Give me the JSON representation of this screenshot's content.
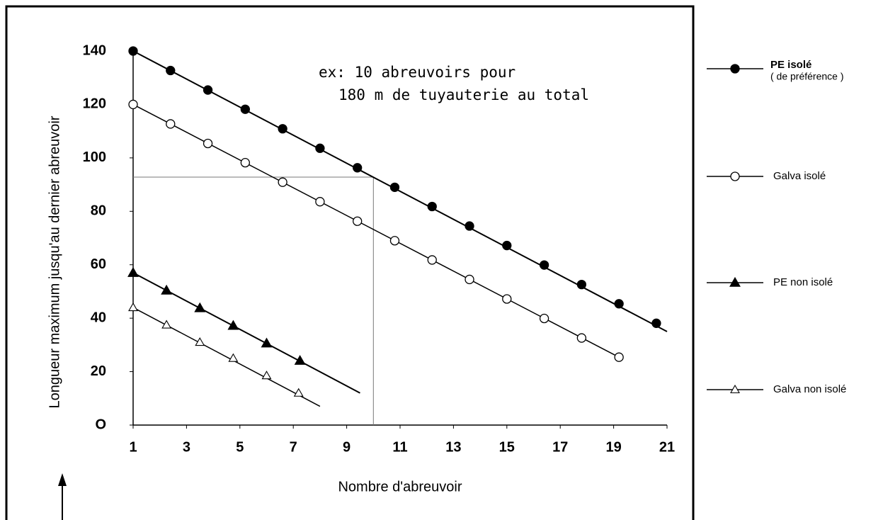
{
  "chart_data": {
    "type": "line",
    "y_label": "Longueur maximum  jusqu'au dernier abreuvoir",
    "x_label": "Nombre d'abreuvoir",
    "annotation": [
      "ex: 10 abreuvoirs pour",
      "180 m de tuyauterie au total"
    ],
    "xlim": [
      1,
      21
    ],
    "ylim": [
      0,
      140
    ],
    "xticks": [
      1,
      3,
      5,
      7,
      9,
      11,
      13,
      15,
      17,
      19,
      21
    ],
    "yticks": [
      {
        "value": 0,
        "label": "O"
      },
      20,
      40,
      60,
      80,
      100,
      120,
      140
    ],
    "reference": {
      "x": 10,
      "y": 92.8
    },
    "series": [
      {
        "name": "PE isolé",
        "note": "( de préférence )",
        "color": "#000000",
        "marker": "circle",
        "filled": true,
        "x": [
          1,
          2.4,
          3.8,
          5.2,
          6.6,
          8,
          9.4,
          10.8,
          12.2,
          13.6,
          15,
          16.4,
          17.8,
          19.2,
          20.6
        ],
        "values": [
          140,
          132.7,
          125.4,
          118.2,
          110.9,
          103.6,
          96.3,
          89,
          81.8,
          74.5,
          67.2,
          59.9,
          52.6,
          45.4,
          38.1
        ],
        "line": {
          "x": [
            1,
            21
          ],
          "y": [
            140,
            35
          ]
        }
      },
      {
        "name": "Galva isolé",
        "color": "#000000",
        "marker": "circle",
        "filled": false,
        "x": [
          1,
          2.4,
          3.8,
          5.2,
          6.6,
          8,
          9.4,
          10.8,
          12.2,
          13.6,
          15,
          16.4,
          17.8,
          19.2
        ],
        "values": [
          120,
          112.7,
          105.4,
          98.2,
          90.9,
          83.6,
          76.3,
          69,
          61.8,
          54.5,
          47.2,
          39.9,
          32.6,
          25.4
        ],
        "line": {
          "x": [
            1,
            19.2
          ],
          "y": [
            120,
            25.4
          ]
        }
      },
      {
        "name": "PE non isolé",
        "color": "#000000",
        "marker": "triangle",
        "filled": true,
        "x": [
          1,
          2.25,
          3.5,
          4.75,
          6,
          7.25
        ],
        "values": [
          57,
          50.4,
          43.8,
          37.2,
          30.6,
          24.1
        ],
        "line": {
          "x": [
            1,
            9.5
          ],
          "y": [
            57,
            12
          ]
        }
      },
      {
        "name": "Galva non isolé",
        "color": "#000000",
        "marker": "triangle",
        "filled": false,
        "x": [
          1,
          2.25,
          3.5,
          4.75,
          6,
          7.2
        ],
        "values": [
          44,
          37.5,
          31,
          25,
          18.5,
          12
        ],
        "line": {
          "x": [
            1,
            8
          ],
          "y": [
            44,
            7
          ]
        }
      }
    ]
  }
}
